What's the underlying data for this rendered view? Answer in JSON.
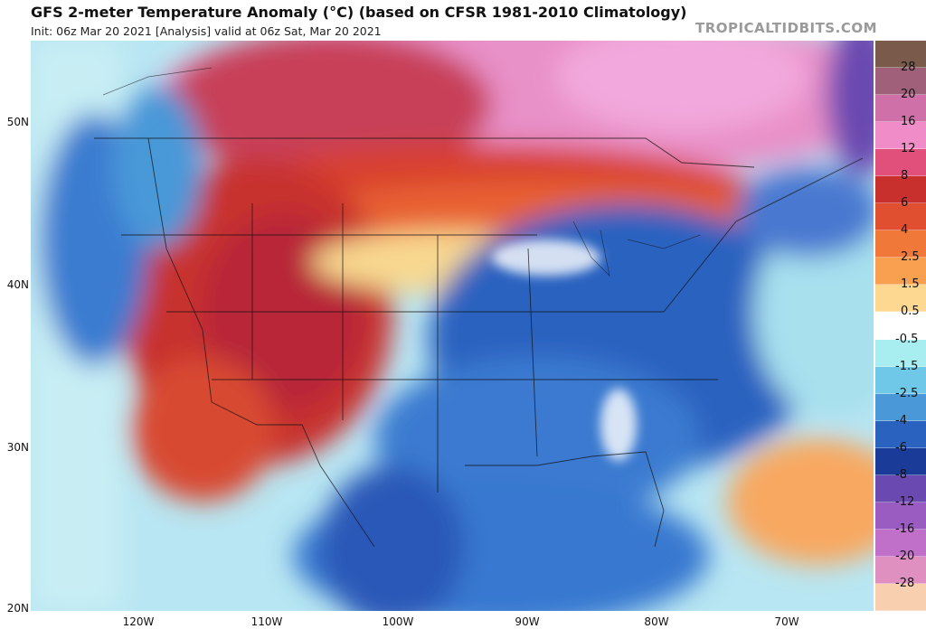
{
  "header": {
    "title": "GFS 2-meter Temperature Anomaly (°C) (based on CFSR 1981-2010 Climatology)",
    "subtitle": "Init: 06z Mar 20 2021   [Analysis]   valid at 06z Sat, Mar 20 2021",
    "brand": "TROPICALTIDBITS.COM"
  },
  "axes": {
    "lat_labels": [
      "50N",
      "40N",
      "30N",
      "20N"
    ],
    "lon_labels": [
      "120W",
      "110W",
      "100W",
      "90W",
      "80W",
      "70W"
    ]
  },
  "colorbar": {
    "labels": [
      "28",
      "20",
      "16",
      "12",
      "8",
      "6",
      "4",
      "2.5",
      "1.5",
      "0.5",
      "-0.5",
      "-1.5",
      "-2.5",
      "-4",
      "-6",
      "-8",
      "-12",
      "-16",
      "-20",
      "-28"
    ],
    "colors": [
      "#7a5a4a",
      "#a0607a",
      "#d070a8",
      "#f08cc8",
      "#e0507a",
      "#c8302e",
      "#e05030",
      "#f07838",
      "#f8a050",
      "#fcd890",
      "#ffffff",
      "#a8eef0",
      "#70c8e8",
      "#4a98d8",
      "#2a62c0",
      "#1a3c98",
      "#6a4ab0",
      "#9a5cc0",
      "#c070c8",
      "#e090c0",
      "#f8d0b0"
    ],
    "accent_warm": "#c8302e",
    "accent_cold": "#2a62c0"
  }
}
